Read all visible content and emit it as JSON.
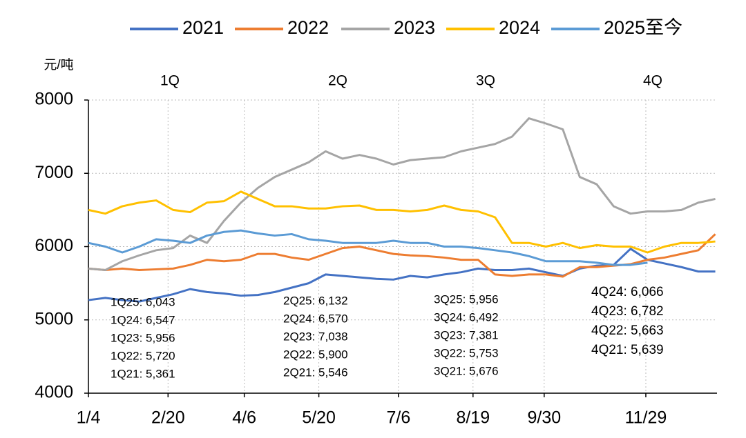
{
  "chart_data": {
    "type": "line",
    "y_unit": "元/吨",
    "x": [
      4,
      14,
      24,
      34,
      44,
      54,
      64,
      74,
      84,
      94,
      104,
      114,
      124,
      134,
      144,
      154,
      164,
      174,
      184,
      194,
      204,
      214,
      224,
      234,
      244,
      254,
      264,
      274,
      284,
      294,
      304,
      314,
      324,
      334,
      344,
      354,
      364,
      374
    ],
    "xlim": [
      4,
      375
    ],
    "xticks": [
      {
        "value": 4,
        "label": "1/4"
      },
      {
        "value": 51,
        "label": "2/20"
      },
      {
        "value": 96,
        "label": "4/6"
      },
      {
        "value": 140,
        "label": "5/20"
      },
      {
        "value": 187,
        "label": "7/6"
      },
      {
        "value": 231,
        "label": "8/19"
      },
      {
        "value": 273,
        "label": "9/30"
      },
      {
        "value": 333,
        "label": "11/29"
      }
    ],
    "ylim": [
      4000,
      8000
    ],
    "yticks": [
      4000,
      5000,
      6000,
      7000,
      8000
    ],
    "grid": true,
    "legend": "top",
    "series": [
      {
        "name": "2021",
        "color": "#4472c4",
        "values": [
          5270,
          5300,
          5270,
          5250,
          5300,
          5350,
          5420,
          5380,
          5360,
          5330,
          5340,
          5380,
          5440,
          5500,
          5620,
          5600,
          5580,
          5560,
          5550,
          5600,
          5580,
          5620,
          5650,
          5700,
          5680,
          5680,
          5700,
          5650,
          5600,
          5700,
          5740,
          5750,
          5970,
          5820,
          5770,
          5720,
          5660,
          5660
        ]
      },
      {
        "name": "2022",
        "color": "#ed7d31",
        "values": [
          5700,
          5680,
          5700,
          5680,
          5690,
          5700,
          5750,
          5820,
          5800,
          5820,
          5900,
          5900,
          5850,
          5820,
          5900,
          5980,
          6000,
          5950,
          5900,
          5880,
          5870,
          5850,
          5820,
          5820,
          5620,
          5600,
          5620,
          5620,
          5590,
          5720,
          5720,
          5740,
          5760,
          5820,
          5850,
          5900,
          5950,
          6170
        ]
      },
      {
        "name": "2023",
        "color": "#a5a5a5",
        "values": [
          5700,
          5680,
          5800,
          5880,
          5950,
          5980,
          6150,
          6050,
          6350,
          6600,
          6800,
          6950,
          7050,
          7150,
          7300,
          7200,
          7250,
          7200,
          7120,
          7180,
          7200,
          7220,
          7300,
          7350,
          7400,
          7500,
          7750,
          7680,
          7600,
          6950,
          6850,
          6550,
          6450,
          6480,
          6480,
          6500,
          6600,
          6650
        ]
      },
      {
        "name": "2024",
        "color": "#ffc000",
        "values": [
          6500,
          6450,
          6550,
          6600,
          6630,
          6500,
          6470,
          6600,
          6620,
          6750,
          6650,
          6550,
          6550,
          6520,
          6520,
          6550,
          6560,
          6500,
          6500,
          6480,
          6500,
          6560,
          6500,
          6480,
          6400,
          6050,
          6050,
          6000,
          6050,
          5980,
          6020,
          6000,
          6000,
          5920,
          6000,
          6050,
          6050,
          6070
        ]
      },
      {
        "name": "2025至今",
        "color": "#5b9bd5",
        "values": [
          6050,
          6000,
          5920,
          6000,
          6100,
          6080,
          6050,
          6150,
          6200,
          6220,
          6180,
          6150,
          6170,
          6100,
          6080,
          6050,
          6050,
          6050,
          6080,
          6050,
          6050,
          6000,
          6000,
          5980,
          5950,
          5920,
          5870,
          5800,
          5800,
          5800,
          5780,
          5750,
          5750,
          5780,
          null,
          null,
          null,
          null
        ]
      }
    ],
    "quarter_labels": [
      "1Q",
      "2Q",
      "3Q",
      "4Q"
    ],
    "annotations": [
      [
        "1Q25: 6,043",
        "1Q24: 6,547",
        "1Q23: 5,956",
        "1Q22: 5,720",
        "1Q21: 5,361"
      ],
      [
        "2Q25: 6,132",
        "2Q24: 6,570",
        "2Q23: 7,038",
        "2Q22: 5,900",
        "2Q21: 5,546"
      ],
      [
        "3Q25: 5,956",
        "3Q24: 6,492",
        "3Q23: 7,381",
        "3Q22: 5,753",
        "3Q21: 5,676"
      ],
      [
        "4Q24: 6,066",
        "4Q23: 6,782",
        "4Q22: 5,663",
        "4Q21: 5,639"
      ]
    ]
  }
}
